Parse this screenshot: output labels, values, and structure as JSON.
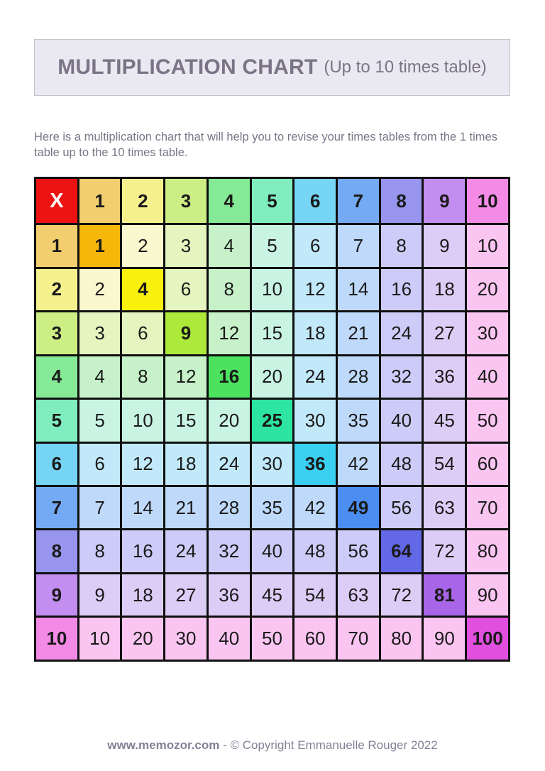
{
  "header": {
    "title_main": "MULTIPLICATION CHART",
    "title_sub": "(Up to 10 times table)"
  },
  "description": "Here is a multiplication chart that will help you to revise your times tables from the 1 times table up to the 10 times table.",
  "table": {
    "operator": "X",
    "col_headers": [
      "1",
      "2",
      "3",
      "4",
      "5",
      "6",
      "7",
      "8",
      "9",
      "10"
    ],
    "row_headers": [
      "1",
      "2",
      "3",
      "4",
      "5",
      "6",
      "7",
      "8",
      "9",
      "10"
    ],
    "rows": [
      [
        1,
        2,
        3,
        4,
        5,
        6,
        7,
        8,
        9,
        10
      ],
      [
        2,
        4,
        6,
        8,
        10,
        12,
        14,
        16,
        18,
        20
      ],
      [
        3,
        6,
        9,
        12,
        15,
        18,
        21,
        24,
        27,
        30
      ],
      [
        4,
        8,
        12,
        16,
        20,
        24,
        28,
        32,
        36,
        40
      ],
      [
        5,
        10,
        15,
        20,
        25,
        30,
        35,
        40,
        45,
        50
      ],
      [
        6,
        12,
        18,
        24,
        30,
        36,
        42,
        48,
        54,
        60
      ],
      [
        7,
        14,
        21,
        28,
        35,
        42,
        49,
        56,
        63,
        70
      ],
      [
        8,
        16,
        24,
        32,
        40,
        48,
        56,
        64,
        72,
        80
      ],
      [
        9,
        18,
        27,
        36,
        45,
        54,
        63,
        72,
        81,
        90
      ],
      [
        10,
        20,
        30,
        40,
        50,
        60,
        70,
        80,
        90,
        100
      ]
    ]
  },
  "chart_data": {
    "type": "table",
    "title": "MULTIPLICATION CHART (Up to 10 times table)",
    "columns": [
      "X",
      "1",
      "2",
      "3",
      "4",
      "5",
      "6",
      "7",
      "8",
      "9",
      "10"
    ],
    "rows": [
      [
        "1",
        1,
        2,
        3,
        4,
        5,
        6,
        7,
        8,
        9,
        10
      ],
      [
        "2",
        2,
        4,
        6,
        8,
        10,
        12,
        14,
        16,
        18,
        20
      ],
      [
        "3",
        3,
        6,
        9,
        12,
        15,
        18,
        21,
        24,
        27,
        30
      ],
      [
        "4",
        4,
        8,
        12,
        16,
        20,
        24,
        28,
        32,
        36,
        40
      ],
      [
        "5",
        5,
        10,
        15,
        20,
        25,
        30,
        35,
        40,
        45,
        50
      ],
      [
        "6",
        6,
        12,
        18,
        24,
        30,
        36,
        42,
        48,
        54,
        60
      ],
      [
        "7",
        7,
        14,
        21,
        28,
        35,
        42,
        49,
        56,
        63,
        70
      ],
      [
        "8",
        8,
        16,
        24,
        32,
        40,
        48,
        56,
        64,
        72,
        80
      ],
      [
        "9",
        9,
        18,
        27,
        36,
        45,
        54,
        63,
        72,
        81,
        90
      ],
      [
        "10",
        10,
        20,
        30,
        40,
        50,
        60,
        70,
        80,
        90,
        100
      ]
    ]
  },
  "colors": {
    "operator_bg": "#ED1313",
    "operator_text": "#FFFFFF",
    "grid_line": "#101010",
    "cell_text": "#1A1A1A",
    "title_text": "#7B7487",
    "title_box_bg": "#EAE9F1",
    "title_box_border": "#C3C2CD",
    "footer_text": "#868096",
    "families": [
      {
        "mid": "#F3CE6E",
        "strong": "#F6B70B",
        "light": "#FBEFC8"
      },
      {
        "mid": "#F5F18D",
        "strong": "#F8F00D",
        "light": "#FAF8CE"
      },
      {
        "mid": "#CDEE85",
        "strong": "#ACE93A",
        "light": "#E4F5BF"
      },
      {
        "mid": "#85E995",
        "strong": "#4CE25F",
        "light": "#C6F1C9"
      },
      {
        "mid": "#7FEDBE",
        "strong": "#2DE4A3",
        "light": "#C9F4E4"
      },
      {
        "mid": "#76D5F4",
        "strong": "#3BD0F2",
        "light": "#C2E9FA"
      },
      {
        "mid": "#74AAF3",
        "strong": "#4B8DF0",
        "light": "#BED9FA"
      },
      {
        "mid": "#9795EE",
        "strong": "#6368E6",
        "light": "#CDCCF8"
      },
      {
        "mid": "#C28EF0",
        "strong": "#A865E8",
        "light": "#DCCDF6"
      },
      {
        "mid": "#F28AE6",
        "strong": "#E14FDE",
        "light": "#FAC5F1"
      }
    ]
  },
  "footer": {
    "site": "www.memozor.com",
    "separator": "-",
    "copyright": "© Copyright Emmanuelle Rouger 2022"
  }
}
